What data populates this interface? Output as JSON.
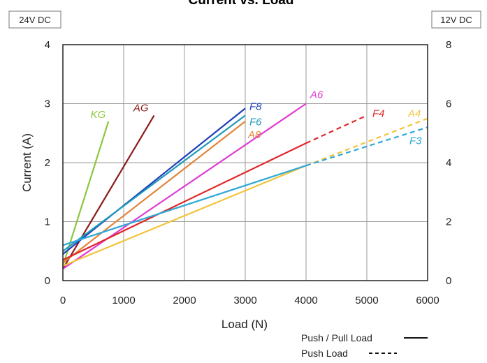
{
  "chart_data": {
    "type": "line",
    "title": "Current  vs. Load",
    "xlabel": "Load (N)",
    "ylabel": "Current (A)",
    "left_axis_badge": "24V DC",
    "right_axis_badge": "12V DC",
    "xlim": [
      0,
      6000
    ],
    "ylim": [
      0,
      4
    ],
    "y2lim": [
      0,
      8
    ],
    "x_ticks": [
      "0",
      "1000",
      "2000",
      "3000",
      "4000",
      "5000",
      "6000"
    ],
    "y_ticks": [
      "0",
      "1",
      "2",
      "3",
      "4"
    ],
    "y2_ticks": [
      "0",
      "2",
      "4",
      "6",
      "8"
    ],
    "grid": true,
    "legend": [
      {
        "label": "Push / Pull Load",
        "style": "solid"
      },
      {
        "label": "Push Load",
        "style": "dashed"
      }
    ],
    "series": [
      {
        "name": "KG",
        "color": "#8cc63f",
        "points": [
          [
            0,
            0.25
          ],
          [
            750,
            2.7
          ]
        ]
      },
      {
        "name": "AG",
        "color": "#8b1a1a",
        "points": [
          [
            0,
            0.2
          ],
          [
            1500,
            2.8
          ]
        ]
      },
      {
        "name": "F8",
        "color": "#1f3fb8",
        "points": [
          [
            0,
            0.45
          ],
          [
            3000,
            2.92
          ]
        ]
      },
      {
        "name": "F6",
        "color": "#1e9ab8",
        "points": [
          [
            0,
            0.5
          ],
          [
            3000,
            2.8
          ]
        ]
      },
      {
        "name": "A8",
        "color": "#e2843a",
        "points": [
          [
            0,
            0.3
          ],
          [
            3000,
            2.7
          ]
        ]
      },
      {
        "name": "A6",
        "color": "#e03ad6",
        "points": [
          [
            0,
            0.2
          ],
          [
            4000,
            3.0
          ]
        ]
      },
      {
        "name": "F4",
        "color": "#e0282a",
        "points": [
          [
            0,
            0.35
          ],
          [
            4000,
            2.33
          ]
        ],
        "push_points": [
          [
            4000,
            2.33
          ],
          [
            5000,
            2.8
          ]
        ]
      },
      {
        "name": "A4",
        "color": "#f2c43c",
        "points": [
          [
            0,
            0.25
          ],
          [
            4000,
            1.95
          ]
        ],
        "push_points": [
          [
            4000,
            1.95
          ],
          [
            6000,
            2.75
          ]
        ]
      },
      {
        "name": "F3",
        "color": "#2ea8d8",
        "points": [
          [
            0,
            0.6
          ],
          [
            4000,
            1.95
          ]
        ],
        "push_points": [
          [
            4000,
            1.95
          ],
          [
            6000,
            2.6
          ]
        ]
      }
    ]
  }
}
